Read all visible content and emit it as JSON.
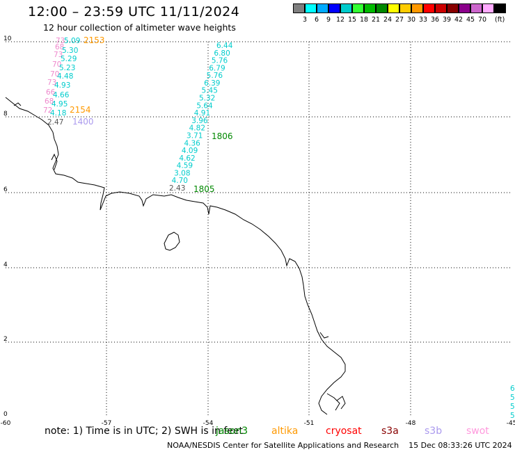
{
  "header": {
    "title": "12:00 – 23:59 UTC 11/11/2024",
    "subtitle": "12 hour collection of altimeter wave heights"
  },
  "legend": {
    "unit": "(ft)",
    "colors": [
      "#7f7f7f",
      "#00ffff",
      "#00aaff",
      "#0000ff",
      "#00cccc",
      "#33ff33",
      "#00bb00",
      "#008800",
      "#ffff00",
      "#ffcc00",
      "#ff9900",
      "#ff0000",
      "#cc0000",
      "#880000",
      "#8b008b",
      "#cc66cc",
      "#ffaaff",
      "#000000"
    ],
    "labels": [
      "3",
      "6",
      "9",
      "12",
      "15",
      "18",
      "21",
      "24",
      "27",
      "30",
      "33",
      "36",
      "39",
      "42",
      "45",
      "70"
    ]
  },
  "axes": {
    "x_ticks": [
      "-60",
      "-57",
      "-54",
      "-51",
      "-48",
      "-45"
    ],
    "y_ticks": [
      "10",
      "8",
      "6",
      "4",
      "2",
      "0"
    ]
  },
  "tracks": {
    "jason3": {
      "color": "#00cccc",
      "labels": [
        "6.44",
        "6.80",
        "5.76",
        "6.79",
        "5.76",
        "6.39",
        "5.45",
        "5.32",
        "5.64",
        "4.91",
        "3.96",
        "4.82",
        "3.71",
        "4.36",
        "4.09",
        "4.62",
        "4.59",
        "3.08",
        "4.70",
        "2.43"
      ],
      "time_labels": [
        "1806",
        "1805"
      ]
    },
    "swot": {
      "labels": [
        "73",
        "68",
        "73",
        "70",
        "70",
        "73",
        "66",
        "68",
        "72",
        "2.47"
      ],
      "time_label": "1400"
    },
    "altika": {
      "labels": [
        "5.09",
        "5.30",
        "5.29",
        "5.23",
        "4.48",
        "4.93",
        "4.66",
        "4.95",
        "4.18"
      ],
      "time_labels": [
        "2153",
        "2154"
      ]
    },
    "edge": [
      "6",
      "5",
      "5",
      "5."
    ]
  },
  "note": {
    "text": "note: 1) Time is in UTC; 2) SWH is in feet",
    "satellites": [
      {
        "name": "jason3",
        "color": "#008800"
      },
      {
        "name": "altika",
        "color": "#ff9900"
      },
      {
        "name": "cryosat",
        "color": "#ff0000"
      },
      {
        "name": "s3a",
        "color": "#880000"
      },
      {
        "name": "s3b",
        "color": "#aa99ee"
      },
      {
        "name": "swot",
        "color": "#ff99dd"
      }
    ]
  },
  "footer": {
    "credit": "NOAA/NESDIS Center for Satellite Applications and Research",
    "timestamp": "15 Dec 08:33:26 UTC 2024"
  }
}
